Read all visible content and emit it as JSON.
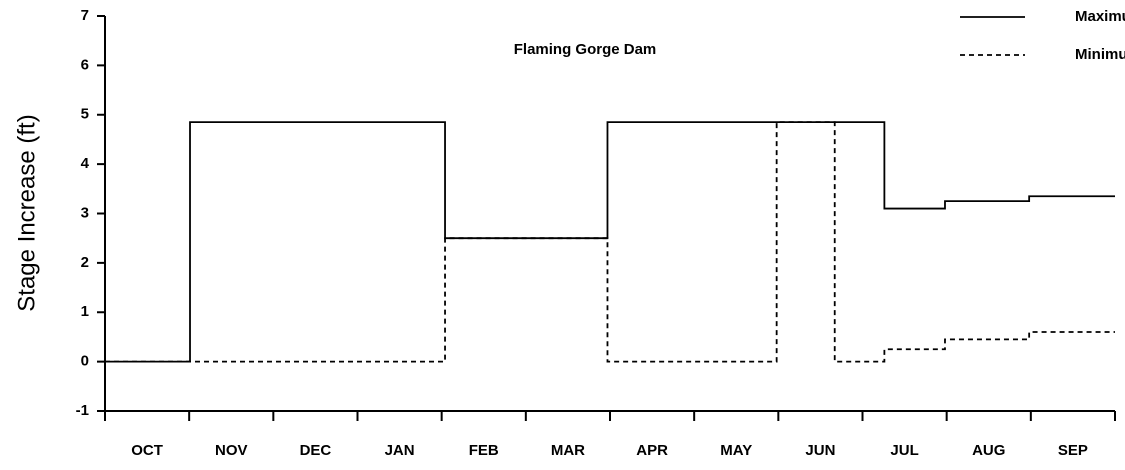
{
  "chart_data": {
    "type": "step-line",
    "title": "Flaming Gorge Dam",
    "y_label": "Stage Increase (ft)",
    "categories": [
      "OCT",
      "NOV",
      "DEC",
      "JAN",
      "FEB",
      "MAR",
      "APR",
      "MAY",
      "JUN",
      "JUL",
      "AUG",
      "SEP"
    ],
    "xlim": [
      0,
      12
    ],
    "xticks": [
      0,
      1,
      2,
      3,
      4,
      5,
      6,
      7,
      8,
      9,
      10,
      11,
      12
    ],
    "ylim": [
      -1,
      7
    ],
    "yticks": [
      -1,
      0,
      1,
      2,
      3,
      4,
      5,
      6,
      7
    ],
    "grid": false,
    "legend": "top-right",
    "series": [
      {
        "name": "Maximum",
        "color": "#000000",
        "dash": "solid",
        "x": [
          0,
          1.01,
          1.01,
          4.04,
          4.04,
          5.97,
          5.97,
          9.26,
          9.26,
          9.98,
          9.98,
          10.98,
          10.98,
          12
        ],
        "values": [
          0,
          0,
          4.85,
          4.85,
          2.5,
          2.5,
          4.85,
          4.85,
          3.1,
          3.1,
          3.25,
          3.25,
          3.35,
          3.35
        ]
      },
      {
        "name": "Minimum",
        "color": "#000000",
        "dash": "dashed",
        "x": [
          0,
          4.04,
          4.04,
          5.97,
          5.97,
          7.98,
          7.98,
          8.67,
          8.67,
          9.26,
          9.26,
          9.98,
          9.98,
          10.98,
          10.98,
          12
        ],
        "values": [
          0,
          0,
          2.5,
          2.5,
          0,
          0,
          4.85,
          4.85,
          0,
          0,
          0.25,
          0.25,
          0.45,
          0.45,
          0.6,
          0.6
        ]
      }
    ]
  }
}
